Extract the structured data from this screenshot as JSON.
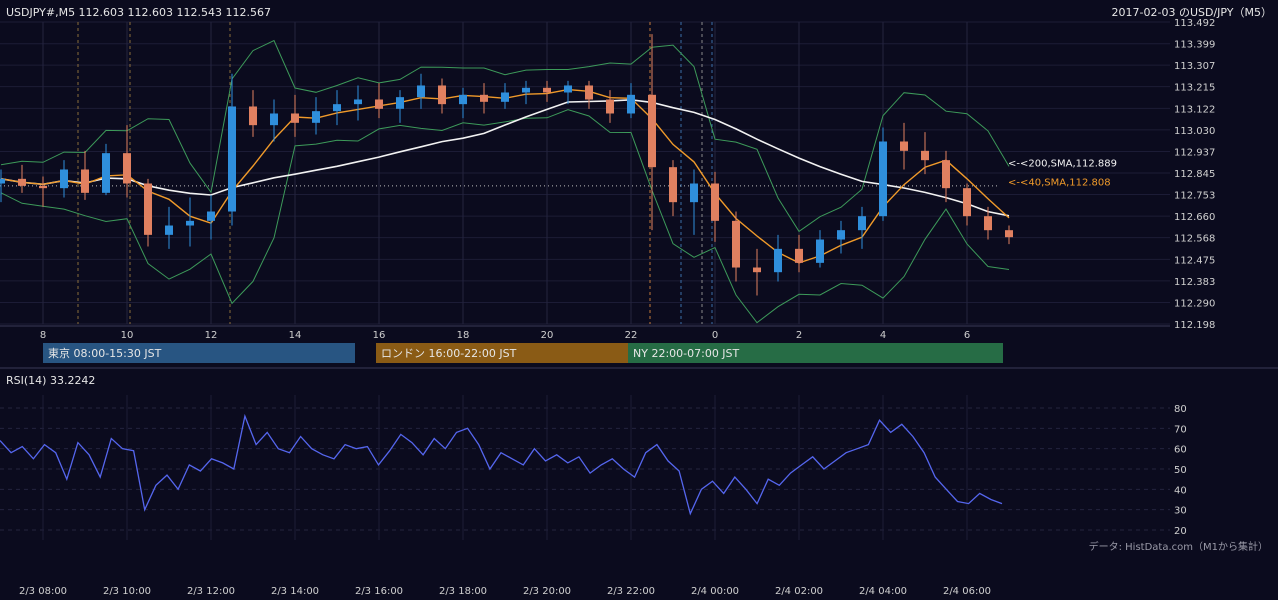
{
  "header": {
    "symbol_ohlc": "USDJPY#,M5 112.603 112.603 112.543 112.567",
    "title": "2017-02-03 のUSD/JPY（M5）"
  },
  "sessions": [
    {
      "label": "東京 08:00-15:30 JST",
      "color": "#285582"
    },
    {
      "label": "ロンドン 16:00-22:00 JST",
      "color": "#8a5b15"
    },
    {
      "label": "NY 22:00-07:00 JST",
      "color": "#266c45"
    }
  ],
  "footer": {
    "source": "データ: HistData.com（M1から集計）"
  },
  "chart_data": [
    {
      "type": "candlestick",
      "ylim": [
        112.198,
        113.492
      ],
      "y_ticks": [
        "113.492",
        "113.399",
        "113.307",
        "113.215",
        "113.122",
        "113.030",
        "112.937",
        "112.845",
        "112.753",
        "112.660",
        "112.568",
        "112.475",
        "112.383",
        "112.290",
        "112.198"
      ],
      "x_ticks": [
        "8",
        "10",
        "12",
        "14",
        "16",
        "18",
        "20",
        "22",
        "0",
        "2",
        "4",
        "6"
      ],
      "bull_color": "#2f8fdc",
      "bear_color": "#e08060",
      "indicators": [
        {
          "label": "<-<200,SMA,112.889",
          "value": 112.889,
          "color": "#f2f2f2"
        },
        {
          "label": "<-<40,SMA,112.808",
          "value": 112.808,
          "color": "#f09a2a"
        }
      ],
      "bollinger_color": "#3d9a5a",
      "reference_line": 112.79,
      "series": [
        {
          "time": "7:00",
          "open": 112.8,
          "high": 112.86,
          "low": 112.72,
          "close": 112.82
        },
        {
          "time": "7:30",
          "open": 112.82,
          "high": 112.88,
          "low": 112.76,
          "close": 112.79
        },
        {
          "time": "8:00",
          "open": 112.79,
          "high": 112.83,
          "low": 112.7,
          "close": 112.78
        },
        {
          "time": "8:30",
          "open": 112.78,
          "high": 112.9,
          "low": 112.74,
          "close": 112.86
        },
        {
          "time": "9:00",
          "open": 112.86,
          "high": 112.94,
          "low": 112.73,
          "close": 112.76
        },
        {
          "time": "9:30",
          "open": 112.76,
          "high": 112.97,
          "low": 112.75,
          "close": 112.93
        },
        {
          "time": "10:00",
          "open": 112.93,
          "high": 113.05,
          "low": 112.74,
          "close": 112.8
        },
        {
          "time": "10:30",
          "open": 112.8,
          "high": 112.82,
          "low": 112.53,
          "close": 112.58
        },
        {
          "time": "11:00",
          "open": 112.58,
          "high": 112.7,
          "low": 112.52,
          "close": 112.62
        },
        {
          "time": "11:30",
          "open": 112.62,
          "high": 112.74,
          "low": 112.53,
          "close": 112.64
        },
        {
          "time": "12:00",
          "open": 112.64,
          "high": 112.75,
          "low": 112.56,
          "close": 112.68
        },
        {
          "time": "12:30",
          "open": 112.68,
          "high": 113.27,
          "low": 112.62,
          "close": 113.13
        },
        {
          "time": "13:00",
          "open": 113.13,
          "high": 113.2,
          "low": 113.0,
          "close": 113.05
        },
        {
          "time": "13:30",
          "open": 113.05,
          "high": 113.16,
          "low": 112.98,
          "close": 113.1
        },
        {
          "time": "14:00",
          "open": 113.1,
          "high": 113.18,
          "low": 113.0,
          "close": 113.06
        },
        {
          "time": "14:30",
          "open": 113.06,
          "high": 113.17,
          "low": 113.01,
          "close": 113.11
        },
        {
          "time": "15:00",
          "open": 113.11,
          "high": 113.2,
          "low": 113.05,
          "close": 113.14
        },
        {
          "time": "15:30",
          "open": 113.14,
          "high": 113.22,
          "low": 113.07,
          "close": 113.16
        },
        {
          "time": "16:00",
          "open": 113.16,
          "high": 113.23,
          "low": 113.08,
          "close": 113.12
        },
        {
          "time": "16:30",
          "open": 113.12,
          "high": 113.2,
          "low": 113.06,
          "close": 113.17
        },
        {
          "time": "17:00",
          "open": 113.17,
          "high": 113.27,
          "low": 113.12,
          "close": 113.22
        },
        {
          "time": "17:30",
          "open": 113.22,
          "high": 113.25,
          "low": 113.1,
          "close": 113.14
        },
        {
          "time": "18:00",
          "open": 113.14,
          "high": 113.21,
          "low": 113.08,
          "close": 113.18
        },
        {
          "time": "18:30",
          "open": 113.18,
          "high": 113.23,
          "low": 113.1,
          "close": 113.15
        },
        {
          "time": "19:00",
          "open": 113.15,
          "high": 113.23,
          "low": 113.12,
          "close": 113.19
        },
        {
          "time": "19:30",
          "open": 113.19,
          "high": 113.24,
          "low": 113.14,
          "close": 113.21
        },
        {
          "time": "20:00",
          "open": 113.21,
          "high": 113.24,
          "low": 113.15,
          "close": 113.19
        },
        {
          "time": "20:30",
          "open": 113.19,
          "high": 113.24,
          "low": 113.14,
          "close": 113.22
        },
        {
          "time": "21:00",
          "open": 113.22,
          "high": 113.24,
          "low": 113.12,
          "close": 113.16
        },
        {
          "time": "21:30",
          "open": 113.16,
          "high": 113.2,
          "low": 113.06,
          "close": 113.1
        },
        {
          "time": "22:00",
          "open": 113.1,
          "high": 113.23,
          "low": 113.08,
          "close": 113.18
        },
        {
          "time": "22:30",
          "open": 113.18,
          "high": 113.44,
          "low": 112.6,
          "close": 112.87
        },
        {
          "time": "23:00",
          "open": 112.87,
          "high": 112.9,
          "low": 112.66,
          "close": 112.72
        },
        {
          "time": "23:30",
          "open": 112.72,
          "high": 112.86,
          "low": 112.58,
          "close": 112.8
        },
        {
          "time": "0:00",
          "open": 112.8,
          "high": 112.85,
          "low": 112.55,
          "close": 112.64
        },
        {
          "time": "0:30",
          "open": 112.64,
          "high": 112.68,
          "low": 112.38,
          "close": 112.44
        },
        {
          "time": "1:00",
          "open": 112.44,
          "high": 112.52,
          "low": 112.32,
          "close": 112.42
        },
        {
          "time": "1:30",
          "open": 112.42,
          "high": 112.58,
          "low": 112.38,
          "close": 112.52
        },
        {
          "time": "2:00",
          "open": 112.52,
          "high": 112.58,
          "low": 112.42,
          "close": 112.46
        },
        {
          "time": "2:30",
          "open": 112.46,
          "high": 112.6,
          "low": 112.44,
          "close": 112.56
        },
        {
          "time": "3:00",
          "open": 112.56,
          "high": 112.64,
          "low": 112.5,
          "close": 112.6
        },
        {
          "time": "3:30",
          "open": 112.6,
          "high": 112.7,
          "low": 112.52,
          "close": 112.66
        },
        {
          "time": "4:00",
          "open": 112.66,
          "high": 113.04,
          "low": 112.64,
          "close": 112.98
        },
        {
          "time": "4:30",
          "open": 112.98,
          "high": 113.06,
          "low": 112.86,
          "close": 112.94
        },
        {
          "time": "5:00",
          "open": 112.94,
          "high": 113.02,
          "low": 112.84,
          "close": 112.9
        },
        {
          "time": "5:30",
          "open": 112.9,
          "high": 112.94,
          "low": 112.72,
          "close": 112.78
        },
        {
          "time": "6:00",
          "open": 112.78,
          "high": 112.8,
          "low": 112.62,
          "close": 112.66
        },
        {
          "time": "6:30",
          "open": 112.66,
          "high": 112.7,
          "low": 112.56,
          "close": 112.6
        },
        {
          "time": "6:55",
          "open": 112.6,
          "high": 112.62,
          "low": 112.54,
          "close": 112.57
        }
      ]
    },
    {
      "type": "line",
      "title": "RSI(14) 33.2242",
      "ylim": [
        20,
        80
      ],
      "y_ticks": [
        80,
        70,
        60,
        50,
        40,
        30,
        20
      ],
      "x_ticks": [
        "2/3 08:00",
        "2/3 10:00",
        "2/3 12:00",
        "2/3 14:00",
        "2/3 16:00",
        "2/3 18:00",
        "2/3 20:00",
        "2/3 22:00",
        "2/4 00:00",
        "2/4 02:00",
        "2/4 04:00",
        "2/4 06:00"
      ],
      "line_color": "#5566ee",
      "values": [
        64,
        58,
        61,
        55,
        62,
        58,
        45,
        63,
        57,
        46,
        65,
        60,
        59,
        30,
        42,
        47,
        40,
        52,
        49,
        55,
        53,
        50,
        76,
        62,
        68,
        60,
        58,
        66,
        60,
        57,
        55,
        62,
        60,
        61,
        52,
        59,
        67,
        63,
        57,
        65,
        60,
        68,
        70,
        62,
        50,
        58,
        55,
        52,
        60,
        54,
        57,
        53,
        56,
        48,
        52,
        55,
        50,
        46,
        58,
        62,
        54,
        49,
        28,
        40,
        44,
        38,
        46,
        40,
        33,
        45,
        42,
        48,
        52,
        56,
        50,
        54,
        58,
        60,
        62,
        74,
        68,
        72,
        66,
        58,
        46,
        40,
        34,
        33,
        38,
        35,
        33
      ]
    }
  ]
}
